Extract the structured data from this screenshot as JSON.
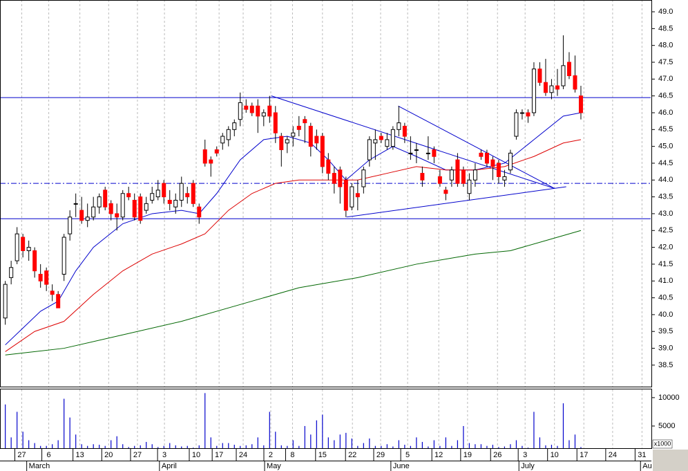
{
  "chart_data": {
    "type": "candlestick",
    "x": [
      0,
      1,
      2,
      3,
      4,
      5,
      6,
      7,
      8,
      9,
      10,
      11,
      12,
      13,
      14,
      15,
      16,
      17,
      18,
      19,
      20,
      21,
      22,
      23,
      24,
      25,
      26,
      27,
      28,
      29,
      30,
      31,
      32,
      33,
      34,
      35,
      36,
      37,
      38,
      39,
      40,
      41,
      42,
      43,
      44,
      45,
      46,
      47,
      48,
      49,
      50,
      51,
      52,
      53,
      54,
      55,
      56,
      57,
      58,
      59,
      60,
      61,
      62,
      63,
      64,
      65,
      66,
      67,
      68,
      69,
      70,
      71,
      72,
      73,
      74,
      75,
      76,
      77,
      78,
      79,
      80,
      81,
      82,
      83,
      84,
      85,
      86,
      87,
      88,
      89,
      90,
      91,
      92,
      93,
      94,
      95,
      96,
      97,
      98
    ],
    "open": [
      39.9,
      41.1,
      41.6,
      42.3,
      41.9,
      41.9,
      41.2,
      41.3,
      40.7,
      40.6,
      41.2,
      42.4,
      43.3,
      43.1,
      42.8,
      42.9,
      43.2,
      43.7,
      43.3,
      43.0,
      42.9,
      43.6,
      43.4,
      43.5,
      43.1,
      43.4,
      43.5,
      43.9,
      43.4,
      43.2,
      43.4,
      43.6,
      43.9,
      43.2,
      44.9,
      44.6,
      44.9,
      45.1,
      45.2,
      45.5,
      45.8,
      46.2,
      46.2,
      46.2,
      45.9,
      46.2,
      46.0,
      45.3,
      45.1,
      45.3,
      45.6,
      45.8,
      45.6,
      45.3,
      45.3,
      44.6,
      44.2,
      44.3,
      44.0,
      43.2,
      43.6,
      43.8,
      44.6,
      45.1,
      45.3,
      45.0,
      45.0,
      45.5,
      45.6,
      44.8,
      44.9,
      44.2,
      44.8,
      44.9,
      44.1,
      43.7,
      44.0,
      44.6,
      44.3,
      43.6,
      44.0,
      44.8,
      44.8,
      44.6,
      44.5,
      44.0,
      44.3,
      45.3,
      46.0,
      46.0,
      46.0,
      47.3,
      46.9,
      46.6,
      46.8,
      46.8,
      47.5,
      47.1,
      46.5
    ],
    "high": [
      41.0,
      41.6,
      42.6,
      42.4,
      42.2,
      42.0,
      41.5,
      41.4,
      40.9,
      40.7,
      42.4,
      43.1,
      43.6,
      43.5,
      43.3,
      43.5,
      43.6,
      43.8,
      43.4,
      43.3,
      43.7,
      43.8,
      43.6,
      43.6,
      43.5,
      43.8,
      44.0,
      44.0,
      43.7,
      43.6,
      44.1,
      43.8,
      44.0,
      43.3,
      45.2,
      44.7,
      45.0,
      45.4,
      45.6,
      45.8,
      46.6,
      46.4,
      46.3,
      46.4,
      46.1,
      46.5,
      46.2,
      45.4,
      45.3,
      45.6,
      45.9,
      45.9,
      45.7,
      45.5,
      45.4,
      44.8,
      44.4,
      44.4,
      44.1,
      43.9,
      44.0,
      44.4,
      45.3,
      45.5,
      45.4,
      45.4,
      45.6,
      46.2,
      45.7,
      45.3,
      45.1,
      44.4,
      45.3,
      45.0,
      44.3,
      43.8,
      44.4,
      44.8,
      44.4,
      44.2,
      44.5,
      44.9,
      44.9,
      44.7,
      44.6,
      44.3,
      44.9,
      46.1,
      46.1,
      46.1,
      47.5,
      47.5,
      47.6,
      47.0,
      47.3,
      48.3,
      47.8,
      47.7,
      46.8
    ],
    "low": [
      39.7,
      40.9,
      41.5,
      41.7,
      41.6,
      41.1,
      40.8,
      40.7,
      40.4,
      40.2,
      41.0,
      42.2,
      42.9,
      42.7,
      42.6,
      42.8,
      43.0,
      43.1,
      42.8,
      42.5,
      42.8,
      43.4,
      42.8,
      42.7,
      43.0,
      43.3,
      43.4,
      43.3,
      43.1,
      43.0,
      43.2,
      43.3,
      43.2,
      42.7,
      44.4,
      44.1,
      44.7,
      44.9,
      45.0,
      45.3,
      45.6,
      46.0,
      45.9,
      45.4,
      45.6,
      45.7,
      45.1,
      44.4,
      44.8,
      45.0,
      45.3,
      45.1,
      44.7,
      44.9,
      44.2,
      44.0,
      43.6,
      43.3,
      42.9,
      43.1,
      43.1,
      43.6,
      44.4,
      44.6,
      45.1,
      44.9,
      44.9,
      45.3,
      45.1,
      44.6,
      44.5,
      43.8,
      44.6,
      44.5,
      43.8,
      43.4,
      43.8,
      43.8,
      43.8,
      43.4,
      43.8,
      44.6,
      44.4,
      44.0,
      43.9,
      43.8,
      44.2,
      45.2,
      45.8,
      45.7,
      45.9,
      46.8,
      46.5,
      46.4,
      46.5,
      46.7,
      47.0,
      46.6,
      45.8
    ],
    "close": [
      40.9,
      41.4,
      42.4,
      41.9,
      42.0,
      41.3,
      41.0,
      40.9,
      40.6,
      40.2,
      42.3,
      42.9,
      43.3,
      42.8,
      42.9,
      43.2,
      43.5,
      43.2,
      43.0,
      42.9,
      43.6,
      43.5,
      42.9,
      42.8,
      43.3,
      43.6,
      43.7,
      43.5,
      43.3,
      43.4,
      43.9,
      43.5,
      43.3,
      42.9,
      44.5,
      44.5,
      44.8,
      45.3,
      45.5,
      45.7,
      46.3,
      46.1,
      46.0,
      45.9,
      46.0,
      45.9,
      45.4,
      44.9,
      45.2,
      45.4,
      45.5,
      45.7,
      45.0,
      45.1,
      44.4,
      44.2,
      43.9,
      43.8,
      43.1,
      43.8,
      43.5,
      44.3,
      45.2,
      45.2,
      45.2,
      45.2,
      45.5,
      45.7,
      45.3,
      44.8,
      44.9,
      44.0,
      44.8,
      44.7,
      43.9,
      43.6,
      44.3,
      43.9,
      43.9,
      44.0,
      44.3,
      44.7,
      44.5,
      44.4,
      44.1,
      44.1,
      44.8,
      46.0,
      46.0,
      45.9,
      47.3,
      46.9,
      46.6,
      46.8,
      46.7,
      47.4,
      47.1,
      46.7,
      46.0
    ],
    "up_color": "#ffffff",
    "down_color": "#ff0000",
    "xlim": [
      -0.9,
      110
    ],
    "ylim": [
      37.84,
      49.35
    ],
    "yticks": [
      38.5,
      {
        "value": 39,
        "label": "39.0"
      },
      39.5,
      {
        "value": 40,
        "label": "40.0"
      },
      40.5,
      {
        "value": 41,
        "label": "41.0"
      },
      41.5,
      {
        "value": 42,
        "label": "42.0"
      },
      42.5,
      {
        "value": 43,
        "label": "43.0"
      },
      43.5,
      {
        "value": 44,
        "label": "44.0"
      },
      44.5,
      {
        "value": 45,
        "label": "45.0"
      },
      45.5,
      {
        "value": 46,
        "label": "46.0"
      },
      46.5,
      {
        "value": 47,
        "label": "47.0"
      },
      47.5,
      {
        "value": 48,
        "label": "48.0"
      },
      48.5,
      {
        "value": 49,
        "label": "49.0"
      }
    ],
    "xticks": [
      {
        "value": 2.8,
        "label": "27"
      },
      {
        "value": 7.4,
        "label": "6"
      },
      {
        "value": 12.7,
        "label": "13"
      },
      {
        "value": 17.6,
        "label": "20"
      },
      {
        "value": 22.5,
        "label": "27"
      },
      {
        "value": 27.1,
        "label": "3"
      },
      {
        "value": 32.5,
        "label": "10"
      },
      {
        "value": 36.4,
        "label": "17"
      },
      {
        "value": 40.5,
        "label": "24"
      },
      {
        "value": 45.2,
        "label": "2"
      },
      {
        "value": 48.9,
        "label": "8"
      },
      {
        "value": 54,
        "label": "15"
      },
      {
        "value": 59.1,
        "label": "22"
      },
      {
        "value": 63.9,
        "label": "29"
      },
      {
        "value": 68.5,
        "label": "5"
      },
      {
        "value": 73.8,
        "label": "12"
      },
      {
        "value": 78.7,
        "label": "19"
      },
      {
        "value": 83.8,
        "label": "26"
      },
      {
        "value": 88.5,
        "label": "3"
      },
      {
        "value": 93.5,
        "label": "10"
      },
      {
        "value": 98.5,
        "label": "17"
      },
      {
        "value": 103.4,
        "label": "24"
      },
      {
        "value": 108.4,
        "label": "31"
      }
    ],
    "month_ticks": [
      {
        "value": 4,
        "label": "March"
      },
      {
        "value": 26.6,
        "label": "April"
      },
      {
        "value": 44.5,
        "label": "May"
      },
      {
        "value": 66,
        "label": "June"
      },
      {
        "value": 87.8,
        "label": "July"
      },
      {
        "value": 108.5,
        "label": "Au"
      }
    ],
    "grid": true,
    "lines": [
      {
        "color": "#0000cc",
        "x": [
          0,
          3,
          6,
          9,
          12,
          15,
          20,
          25,
          30,
          33,
          36,
          40,
          44,
          48,
          52,
          55,
          58,
          62,
          66,
          70,
          75,
          80,
          85,
          90,
          95,
          98
        ],
        "values": [
          39.1,
          39.6,
          40.1,
          40.4,
          41.3,
          42.0,
          42.7,
          43.0,
          43.1,
          43.0,
          43.6,
          44.6,
          45.2,
          45.3,
          45.1,
          44.6,
          44.0,
          44.6,
          45.0,
          44.7,
          44.3,
          44.3,
          44.5,
          45.2,
          45.9,
          46.0
        ]
      },
      {
        "color": "#dd0000",
        "x": [
          0,
          5,
          10,
          15,
          20,
          25,
          30,
          34,
          38,
          42,
          46,
          50,
          55,
          60,
          65,
          70,
          75,
          80,
          85,
          90,
          95,
          98
        ],
        "values": [
          38.9,
          39.5,
          39.8,
          40.6,
          41.3,
          41.8,
          42.1,
          42.4,
          43.1,
          43.6,
          43.9,
          44.0,
          44.0,
          44.0,
          44.2,
          44.4,
          44.3,
          44.3,
          44.4,
          44.7,
          45.1,
          45.2
        ]
      },
      {
        "color": "#006600",
        "x": [
          0,
          10,
          20,
          30,
          40,
          50,
          60,
          70,
          80,
          86,
          92,
          98
        ],
        "values": [
          38.8,
          39.0,
          39.4,
          39.8,
          40.3,
          40.8,
          41.1,
          41.5,
          41.8,
          41.9,
          42.2,
          42.5
        ]
      }
    ],
    "hlines": [
      {
        "value": 46.45,
        "color": "#0000cc",
        "style": "solid"
      },
      {
        "value": 43.9,
        "color": "#0000cc",
        "style": "dashdot"
      },
      {
        "value": 42.85,
        "color": "#0000cc",
        "style": "solid"
      }
    ],
    "trendlines": [
      {
        "color": "#0000cc",
        "x": [
          45.3,
          93.5
        ],
        "values": [
          46.5,
          43.75
        ]
      },
      {
        "color": "#0000cc",
        "x": [
          66.9,
          93.5
        ],
        "values": [
          46.2,
          43.75
        ]
      },
      {
        "color": "#0000cc",
        "x": [
          58.1,
          95.5
        ],
        "values": [
          42.9,
          43.8
        ]
      }
    ],
    "volume": {
      "color": "#0000cc",
      "values": [
        8800,
        3000,
        7500,
        4000,
        2500,
        2000,
        1500,
        1500,
        1800,
        2500,
        9800,
        6500,
        3500,
        1800,
        1500,
        1800,
        1700,
        1500,
        2500,
        3200,
        1800,
        1300,
        1500,
        1600,
        2200,
        1800,
        1300,
        1500,
        2000,
        1600,
        1400,
        1500,
        1200,
        1600,
        10800,
        3000,
        1500,
        2000,
        2000,
        1700,
        1500,
        1600,
        1800,
        3000,
        1600,
        7500,
        4000,
        1600,
        1500,
        2500,
        1500,
        5000,
        3500,
        6000,
        7000,
        3000,
        2500,
        3500,
        3800,
        2800,
        1500,
        2000,
        2800,
        1500,
        1500,
        1800,
        1400,
        2500,
        1700,
        1500,
        3000,
        2200,
        1400,
        2500,
        1500,
        3000,
        1500,
        2500,
        5000,
        2000,
        1800,
        1800,
        1500,
        1700,
        1300,
        1400,
        1800,
        2500,
        1500,
        1200,
        7500,
        3000,
        1600,
        1700,
        1500,
        9000,
        2500,
        3500,
        1300
      ],
      "ylim": [
        1100,
        11450
      ],
      "yticks": [
        5000,
        10000
      ],
      "unit_label": "x1000"
    }
  }
}
